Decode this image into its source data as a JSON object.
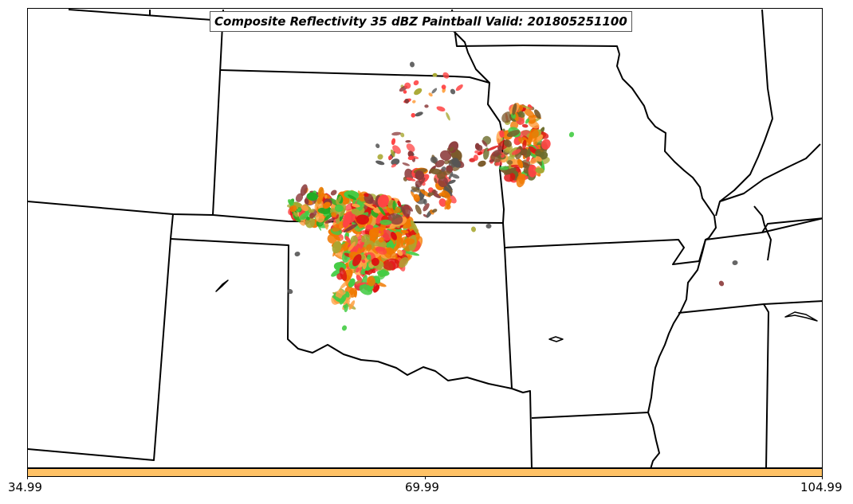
{
  "title": "Composite Reflectivity 35 dBZ Paintball Valid: 201805251100",
  "colorbar": {
    "color": "#ffc266",
    "ticks": [
      "34.99",
      "69.99",
      "104.99"
    ]
  },
  "colors": {
    "boundary": "#000000",
    "paintball_members": [
      "#f07800",
      "#ff4444",
      "#dd1111",
      "#44cc44",
      "#22aa22",
      "#a8a832",
      "#8b3a3a",
      "#7a5a2a",
      "#555555",
      "#ffa040",
      "#6b6b2a"
    ]
  }
}
